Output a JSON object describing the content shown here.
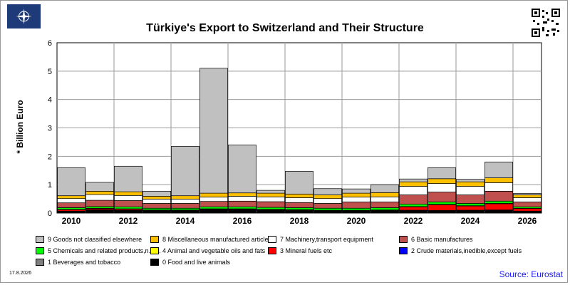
{
  "title": "Türkiye's Export to Switzerland and Their Structure",
  "ylabel": "* Billion Euro",
  "date": "17.8.2026",
  "source": "Source: Eurostat",
  "chart_data": {
    "type": "bar",
    "stacked": true,
    "title": "Türkiye's Export to Switzerland and Their Structure",
    "xlabel": "",
    "ylabel": "* Billion Euro",
    "ylim": [
      0,
      6
    ],
    "yticks": [
      "0",
      "1",
      "2",
      "3",
      "4",
      "5",
      "6"
    ],
    "categories": [
      "2010",
      "2011",
      "2012",
      "2013",
      "2014",
      "2015",
      "2016",
      "2017",
      "2018",
      "2019",
      "2020",
      "2021",
      "2022",
      "2023",
      "2024",
      "2025",
      "2026"
    ],
    "xtick_labels": [
      "2010",
      "2012",
      "2014",
      "2016",
      "2018",
      "2020",
      "2022",
      "2024",
      "2026"
    ],
    "grid": true,
    "series": [
      {
        "name": "0 Food and live animals",
        "color": "#000000",
        "values": [
          0.05,
          0.1,
          0.08,
          0.07,
          0.06,
          0.1,
          0.1,
          0.08,
          0.07,
          0.06,
          0.06,
          0.07,
          0.08,
          0.07,
          0.08,
          0.09,
          0.05
        ]
      },
      {
        "name": "1 Beverages and tobacco",
        "color": "#7f7f7f",
        "values": [
          0.01,
          0.01,
          0.01,
          0.01,
          0.01,
          0.01,
          0.01,
          0.01,
          0.01,
          0.01,
          0.01,
          0.01,
          0.01,
          0.01,
          0.01,
          0.01,
          0.01
        ]
      },
      {
        "name": "2 Crude materials,inedible,except fuels",
        "color": "#0000ff",
        "values": [
          0.01,
          0.01,
          0.01,
          0.01,
          0.01,
          0.01,
          0.01,
          0.01,
          0.01,
          0.01,
          0.01,
          0.01,
          0.01,
          0.01,
          0.01,
          0.01,
          0.01
        ]
      },
      {
        "name": "3 Mineral fuels etc",
        "color": "#ff0000",
        "values": [
          0.05,
          0.04,
          0.04,
          0.01,
          0.02,
          0.02,
          0.02,
          0.02,
          0.02,
          0.01,
          0.01,
          0.01,
          0.12,
          0.2,
          0.15,
          0.22,
          0.09
        ]
      },
      {
        "name": "4 Animal and vegetable oils and fats",
        "color": "#ffff00",
        "values": [
          0.01,
          0.01,
          0.01,
          0.01,
          0.01,
          0.01,
          0.01,
          0.01,
          0.01,
          0.01,
          0.01,
          0.01,
          0.01,
          0.02,
          0.01,
          0.01,
          0.01
        ]
      },
      {
        "name": "5 Chemicals and related products,n.e.s.",
        "color": "#00ff00",
        "values": [
          0.06,
          0.06,
          0.07,
          0.06,
          0.06,
          0.07,
          0.07,
          0.07,
          0.07,
          0.07,
          0.07,
          0.08,
          0.08,
          0.08,
          0.08,
          0.08,
          0.05
        ]
      },
      {
        "name": "6 Basic manufactures",
        "color": "#c0504d",
        "values": [
          0.17,
          0.22,
          0.22,
          0.17,
          0.17,
          0.19,
          0.2,
          0.2,
          0.18,
          0.17,
          0.22,
          0.2,
          0.33,
          0.35,
          0.3,
          0.35,
          0.17
        ]
      },
      {
        "name": "7 Machinery,transport equipment",
        "color": "#ffffff",
        "values": [
          0.15,
          0.2,
          0.18,
          0.15,
          0.15,
          0.15,
          0.17,
          0.17,
          0.17,
          0.17,
          0.17,
          0.18,
          0.3,
          0.3,
          0.3,
          0.3,
          0.15
        ]
      },
      {
        "name": "8 Miscellaneous manufactured articles",
        "color": "#ffc000",
        "values": [
          0.1,
          0.12,
          0.13,
          0.1,
          0.12,
          0.14,
          0.12,
          0.13,
          0.13,
          0.13,
          0.14,
          0.15,
          0.16,
          0.17,
          0.16,
          0.17,
          0.1
        ]
      },
      {
        "name": "9 Goods not classified elsewhere",
        "color": "#c0c0c0",
        "values": [
          0.99,
          0.31,
          0.9,
          0.18,
          1.74,
          4.4,
          1.69,
          0.1,
          0.8,
          0.22,
          0.15,
          0.28,
          0.1,
          0.39,
          0.09,
          0.56,
          0.05
        ]
      }
    ],
    "legend_position": "bottom"
  }
}
